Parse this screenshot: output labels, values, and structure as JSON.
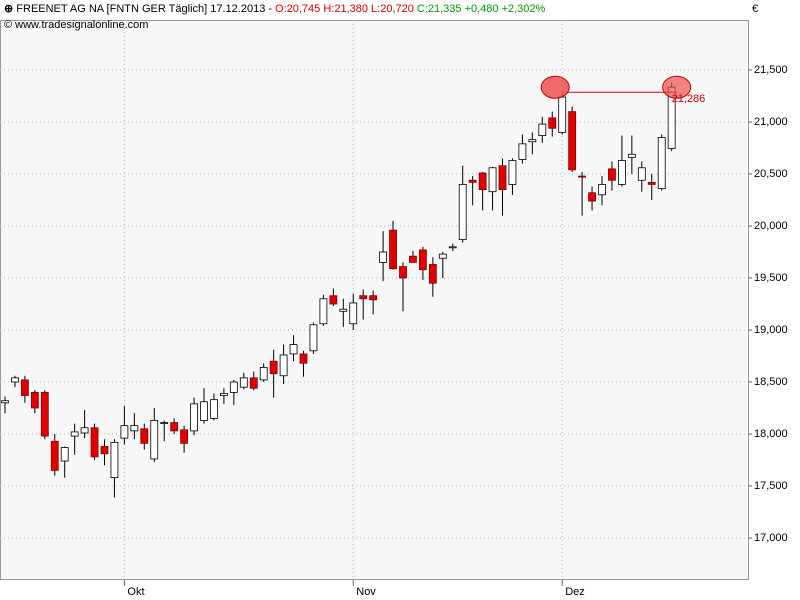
{
  "chart_data": {
    "type": "candlestick",
    "header": {
      "instrument": "FREENET AG NA [FNTN GER  Täglich] 17.12.2013 -",
      "ohl": "O:20,745 H:21,380 L:20,720",
      "change": "C:21,335 +0,480 +2,302%"
    },
    "source": "© www.tradesignalonline.com",
    "currency": "€",
    "categories": [
      null,
      null,
      null,
      null,
      null,
      null,
      null,
      null,
      null,
      null,
      null,
      null,
      "Okt",
      null,
      null,
      null,
      null,
      null,
      null,
      null,
      null,
      null,
      null,
      null,
      null,
      null,
      null,
      null,
      null,
      null,
      null,
      null,
      null,
      null,
      null,
      "Nov",
      null,
      null,
      null,
      null,
      null,
      null,
      null,
      null,
      null,
      null,
      null,
      null,
      null,
      null,
      null,
      null,
      null,
      null,
      null,
      null,
      "Dez",
      null,
      null,
      null,
      null,
      null,
      null,
      null,
      null,
      null,
      null,
      null
    ],
    "open": [
      18300,
      18500,
      18520,
      18400,
      18400,
      17930,
      17740,
      17980,
      18010,
      18060,
      17880,
      17580,
      17960,
      18030,
      18050,
      17760,
      18100,
      18110,
      18040,
      18030,
      18130,
      18150,
      18370,
      18400,
      18450,
      18540,
      18520,
      18700,
      18560,
      18770,
      18770,
      18800,
      19060,
      19330,
      19180,
      19060,
      19330,
      19330,
      19650,
      19960,
      19610,
      19710,
      19770,
      19630,
      19690,
      19790,
      19870,
      20440,
      20510,
      20330,
      20580,
      20400,
      20640,
      20810,
      20870,
      21040,
      20900,
      21100,
      20480,
      20320,
      20300,
      20550,
      20400,
      20660,
      20440,
      20420,
      20360,
      20745
    ],
    "high": [
      18360,
      18560,
      18560,
      18420,
      18420,
      18000,
      17880,
      18100,
      18230,
      18100,
      17950,
      17950,
      18270,
      18200,
      18100,
      18250,
      18130,
      18150,
      18080,
      18350,
      18440,
      18390,
      18440,
      18520,
      18590,
      18600,
      18680,
      18810,
      18860,
      18950,
      18800,
      19070,
      19340,
      19400,
      19300,
      19350,
      19390,
      19380,
      19950,
      20050,
      19650,
      19760,
      19800,
      19700,
      19750,
      19830,
      20580,
      20480,
      20520,
      20570,
      20650,
      20650,
      20880,
      20900,
      21050,
      21100,
      21300,
      21150,
      20520,
      20380,
      20480,
      20620,
      20870,
      20870,
      20620,
      20500,
      20880,
      21380
    ],
    "low": [
      18200,
      18450,
      18300,
      18200,
      17950,
      17600,
      17580,
      17800,
      17960,
      17750,
      17700,
      17390,
      17900,
      17950,
      17850,
      17730,
      17930,
      18000,
      17820,
      17990,
      18100,
      18130,
      18290,
      18280,
      18430,
      18420,
      18500,
      18350,
      18480,
      18700,
      18550,
      18770,
      19040,
      19230,
      19030,
      19000,
      19100,
      19150,
      19470,
      19580,
      19180,
      19650,
      19480,
      19320,
      19500,
      19760,
      19840,
      20200,
      20150,
      20150,
      20100,
      20300,
      20600,
      20690,
      20800,
      20860,
      20880,
      20520,
      20100,
      20150,
      20200,
      20340,
      20380,
      20500,
      20330,
      20250,
      20340,
      20720
    ],
    "close": [
      18320,
      18540,
      18370,
      18250,
      17980,
      17650,
      17870,
      18020,
      18060,
      17780,
      17810,
      17920,
      18080,
      18080,
      17910,
      18130,
      18110,
      18030,
      17910,
      18290,
      18310,
      18330,
      18390,
      18500,
      18540,
      18440,
      18640,
      18580,
      18760,
      18860,
      18680,
      19050,
      19300,
      19250,
      19200,
      19260,
      19300,
      19290,
      19750,
      19590,
      19500,
      19650,
      19580,
      19450,
      19730,
      19800,
      20400,
      20420,
      20350,
      20560,
      20350,
      20630,
      20790,
      20830,
      20980,
      20940,
      21240,
      20540,
      20470,
      20240,
      20400,
      20440,
      20630,
      20690,
      20560,
      20400,
      20850,
      21335
    ],
    "up_color": "#ffffff",
    "down_color": "#e00000",
    "level": {
      "value": 21286,
      "label": "21,286"
    },
    "ylim": [
      16596,
      21981
    ],
    "yticks": [
      {
        "value": 17000,
        "label": "17,000"
      },
      {
        "value": 17500,
        "label": "17,500"
      },
      {
        "value": 18000,
        "label": "18,000"
      },
      {
        "value": 18500,
        "label": "18,500"
      },
      {
        "value": 19000,
        "label": "19,000"
      },
      {
        "value": 19500,
        "label": "19,500"
      },
      {
        "value": 20000,
        "label": "20,000"
      },
      {
        "value": 20500,
        "label": "20,500"
      },
      {
        "value": 21000,
        "label": "21,000"
      },
      {
        "value": 21500,
        "label": "21,500"
      }
    ],
    "grid": true
  }
}
